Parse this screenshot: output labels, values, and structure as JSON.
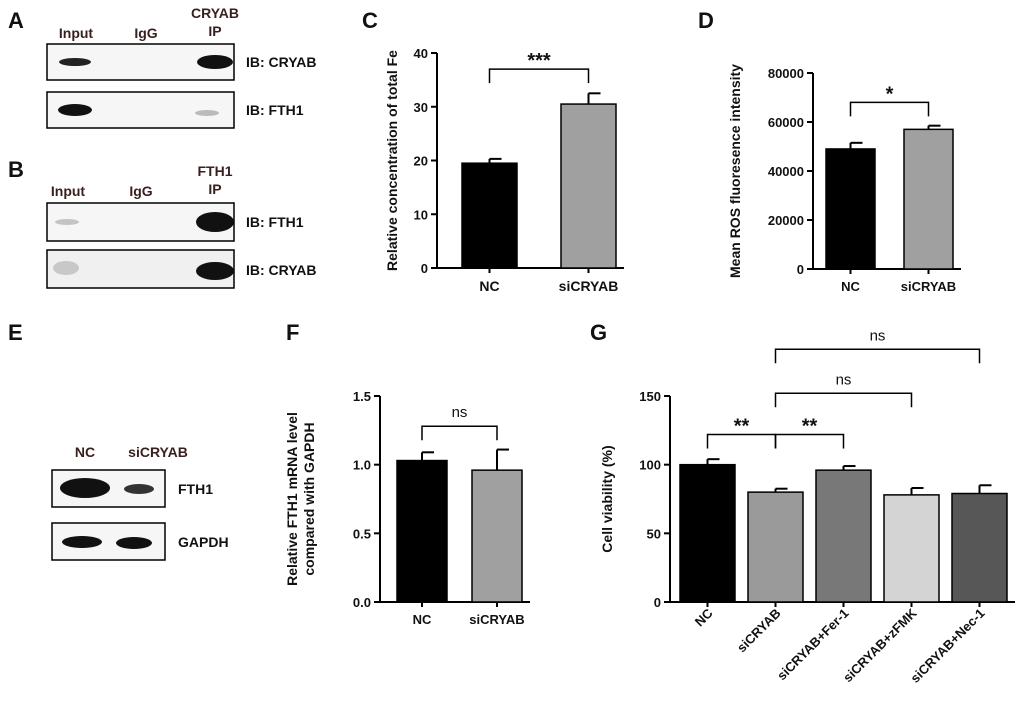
{
  "panels": {
    "a": "A",
    "b": "B",
    "c": "C",
    "d": "D",
    "e": "E",
    "f": "F",
    "g": "G"
  },
  "blot_a": {
    "col_input": "Input",
    "col_igg": "IgG",
    "col_ip_line1": "CRYAB",
    "col_ip_line2": "IP",
    "ib_top": "IB: CRYAB",
    "ib_bottom": "IB: FTH1"
  },
  "blot_b": {
    "col_input": "Input",
    "col_igg": "IgG",
    "col_ip_line1": "FTH1",
    "col_ip_line2": "IP",
    "ib_top": "IB: FTH1",
    "ib_bottom": "IB: CRYAB"
  },
  "blot_e": {
    "col_nc": "NC",
    "col_si": "siCRYAB",
    "row_top": "FTH1",
    "row_bottom": "GAPDH"
  },
  "chart_data": [
    {
      "id": "C",
      "type": "bar",
      "categories": [
        "NC",
        "siCRYAB"
      ],
      "values": [
        19.5,
        30.5
      ],
      "errors": [
        0.8,
        2.0
      ],
      "colors": [
        "#000000",
        "#a0a0a0"
      ],
      "title": "",
      "xlabel": "",
      "ylabel": "Relative concentration of total Fe",
      "ylim": [
        0,
        40
      ],
      "yticks": [
        "0",
        "10",
        "20",
        "30",
        "40"
      ],
      "comparisons": [
        {
          "from": 0,
          "to": 1,
          "label": "***",
          "level": 37
        }
      ]
    },
    {
      "id": "D",
      "type": "bar",
      "categories": [
        "NC",
        "siCRYAB"
      ],
      "values": [
        49000,
        57000
      ],
      "errors": [
        2500,
        1500
      ],
      "colors": [
        "#000000",
        "#a0a0a0"
      ],
      "title": "",
      "xlabel": "",
      "ylabel": "Mean ROS fluoresence intensity",
      "ylim": [
        0,
        80000
      ],
      "yticks": [
        "0",
        "20000",
        "40000",
        "60000",
        "80000"
      ],
      "comparisons": [
        {
          "from": 0,
          "to": 1,
          "label": "*",
          "level": 68000
        }
      ]
    },
    {
      "id": "F",
      "type": "bar",
      "categories": [
        "NC",
        "siCRYAB"
      ],
      "values": [
        1.03,
        0.96
      ],
      "errors": [
        0.06,
        0.15
      ],
      "colors": [
        "#000000",
        "#a0a0a0"
      ],
      "title": "",
      "xlabel": "",
      "ylabel": "Relative FTH1 mRNA level",
      "ylabel2": "compared with GAPDH",
      "ylim": [
        0,
        1.5
      ],
      "yticks": [
        "0.0",
        "0.5",
        "1.0",
        "1.5"
      ],
      "comparisons": [
        {
          "from": 0,
          "to": 1,
          "label": "ns",
          "level": 1.28
        }
      ]
    },
    {
      "id": "G",
      "type": "bar",
      "categories": [
        "NC",
        "siCRYAB",
        "siCRYAB+Fer-1",
        "siCRYAB+zFMK",
        "siCRYAB+Nec-1"
      ],
      "values": [
        100,
        80,
        96,
        78,
        79
      ],
      "errors": [
        4,
        2.5,
        3,
        5,
        6
      ],
      "colors": [
        "#000000",
        "#9a9a9a",
        "#787878",
        "#d4d4d4",
        "#575757"
      ],
      "title": "",
      "xlabel": "",
      "ylabel": "Cell viability (%)",
      "ylim": [
        0,
        150
      ],
      "yticks": [
        "0",
        "50",
        "100",
        "150"
      ],
      "comparisons": [
        {
          "from": 0,
          "to": 1,
          "label": "**",
          "level": 122
        },
        {
          "from": 1,
          "to": 2,
          "label": "**",
          "level": 122
        },
        {
          "from": 1,
          "to": 3,
          "label": "ns",
          "level": 152
        },
        {
          "from": 1,
          "to": 4,
          "label": "ns",
          "level": 184
        }
      ]
    }
  ]
}
